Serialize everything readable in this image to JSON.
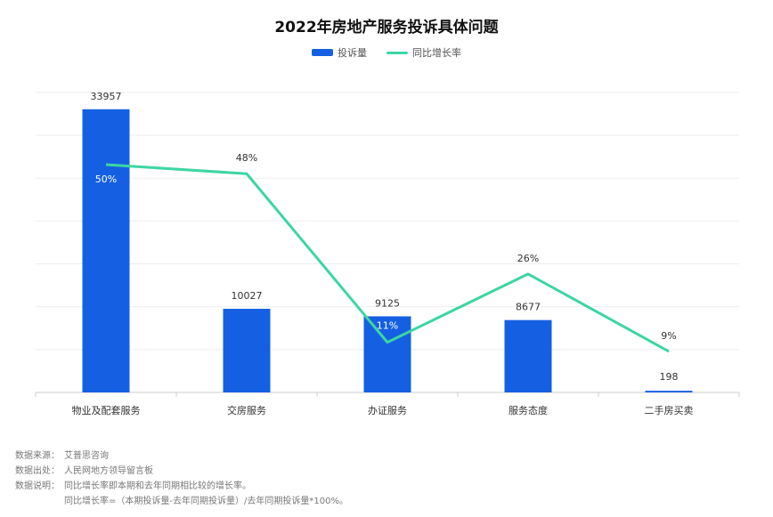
{
  "title": "2022年房地产服务投诉具体问题",
  "legend": {
    "bar_label": "投诉量",
    "line_label": "同比增长率"
  },
  "colors": {
    "bar": "#1560e2",
    "line": "#3dd6a1",
    "axis": "#cccccc",
    "grid": "#eeeeee"
  },
  "chart_data": {
    "type": "bar",
    "title": "2022年房地产服务投诉具体问题",
    "categories": [
      "物业及配套服务",
      "交房服务",
      "办证服务",
      "服务态度",
      "二手房买卖"
    ],
    "series": [
      {
        "name": "投诉量",
        "type": "bar",
        "values": [
          33957,
          10027,
          9125,
          8677,
          198
        ]
      },
      {
        "name": "同比增长率",
        "type": "line",
        "values": [
          50,
          48,
          11,
          26,
          9
        ],
        "labels": [
          "50%",
          "48%",
          "11%",
          "26%",
          "9%"
        ]
      }
    ],
    "bar_labels": [
      "33957",
      "10027",
      "9125",
      "8677",
      "198"
    ],
    "bar_ylim": [
      0,
      35000
    ],
    "line_ylim": [
      0,
      100
    ],
    "grid": true,
    "legend_position": "top-center"
  },
  "notes": {
    "source_label": "数据来源：",
    "source": "艾普思咨询",
    "origin_label": "数据出处：",
    "origin": "人民网地方领导留言板",
    "explain_label": "数据说明：",
    "explain_line1": "同比增长率即本期和去年同期相比较的增长率。",
    "explain_line2": "同比增长率=（本期投诉量-去年同期投诉量）/去年同期投诉量*100%。"
  }
}
